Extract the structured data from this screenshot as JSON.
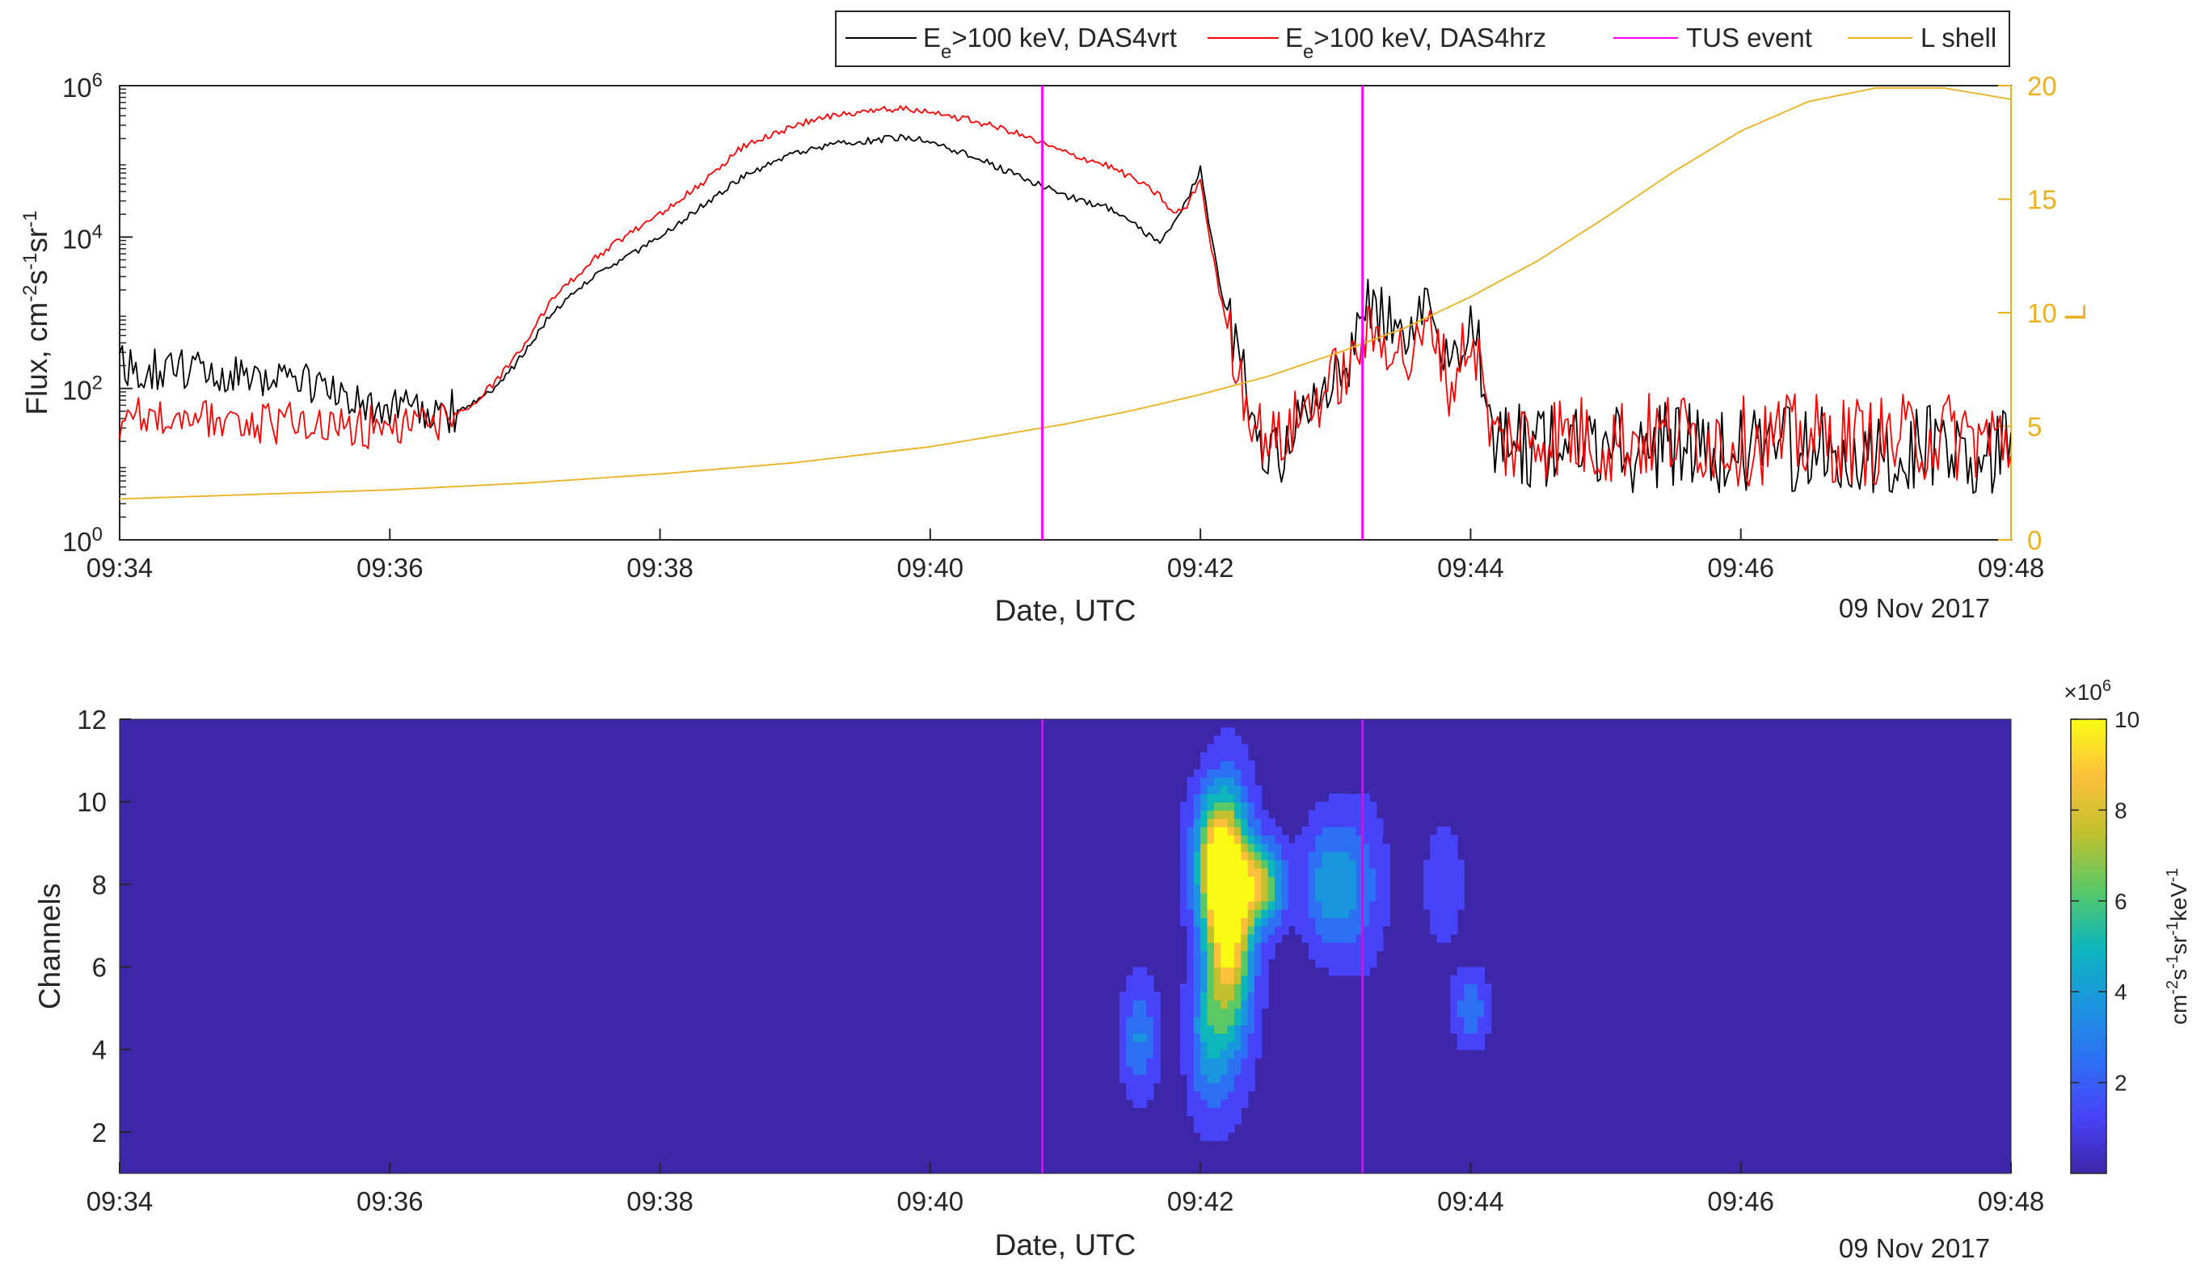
{
  "chart_data": [
    {
      "type": "line",
      "xlabel": "Date, UTC",
      "date_label": "09 Nov 2017",
      "ylabel": "Flux, cm^-2 s^-1 sr^-1",
      "ylabel_parts": {
        "main": "Flux, cm",
        "e1": "-2",
        "s": "s",
        "e2": "-1",
        "sr": "sr",
        "e3": "-1"
      },
      "y2label": "L",
      "x_ticks": [
        "09:34",
        "09:36",
        "09:38",
        "09:40",
        "09:42",
        "09:44",
        "09:46",
        "09:48"
      ],
      "xlim_min": [
        0,
        14
      ],
      "y_scale": "log",
      "ylim": [
        1,
        1000000
      ],
      "y_ticks": [
        {
          "base": "10",
          "exp": "0"
        },
        {
          "base": "10",
          "exp": "2"
        },
        {
          "base": "10",
          "exp": "4"
        },
        {
          "base": "10",
          "exp": "6"
        }
      ],
      "y2lim": [
        0,
        20
      ],
      "y2_ticks": [
        "0",
        "5",
        "10",
        "15",
        "20"
      ],
      "legend_position": "top-right",
      "legend": [
        {
          "pre": "E",
          "sub": "e",
          "post": ">100 keV, DAS4vrt",
          "color": "#000000",
          "type": "line"
        },
        {
          "pre": "E",
          "sub": "e",
          "post": ">100 keV, DAS4hrz",
          "color": "#FF0000",
          "type": "line"
        },
        {
          "pre": "TUS event",
          "sub": "",
          "post": "",
          "color": "#FF00FF",
          "type": "line"
        },
        {
          "pre": "L shell",
          "sub": "",
          "post": "",
          "color": "#EDB120",
          "type": "line"
        }
      ],
      "tus_events_min": [
        6.83,
        9.2
      ],
      "series": [
        {
          "name": "Ee>100 keV, DAS4vrt",
          "color": "#000000",
          "x_min": [
            0,
            0.4,
            0.8,
            1.2,
            1.5,
            1.8,
            2.1,
            2.4,
            2.6,
            2.8,
            3.0,
            3.2,
            3.5,
            3.8,
            4.0,
            4.3,
            4.6,
            5.0,
            5.3,
            5.6,
            5.8,
            6.0,
            6.3,
            6.6,
            6.8,
            7.0,
            7.3,
            7.5,
            7.7,
            7.8,
            7.9,
            8.0,
            8.05,
            8.15,
            8.25,
            8.35,
            8.45,
            8.6,
            8.75,
            8.9,
            9.0,
            9.1,
            9.2,
            9.3,
            9.45,
            9.55,
            9.65,
            9.75,
            9.85,
            9.95,
            10.05,
            10.15,
            10.3,
            10.6,
            11.0,
            11.5,
            12.0,
            12.5,
            13.0,
            13.5,
            14.0
          ],
          "y": [
            200,
            180,
            170,
            140,
            110,
            60,
            50,
            45,
            60,
            110,
            300,
            1000,
            3000,
            6000,
            10000,
            25000,
            60000,
            130000,
            170000,
            190000,
            210000,
            180000,
            120000,
            70000,
            50000,
            35000,
            25000,
            15000,
            8000,
            15000,
            30000,
            80000,
            20000,
            2000,
            500,
            80,
            20,
            15,
            40,
            60,
            150,
            180,
            1300,
            1000,
            1000,
            300,
            1000,
            1200,
            100,
            700,
            500,
            20,
            15,
            18,
            14,
            18,
            15,
            16,
            15,
            17,
            15
          ]
        },
        {
          "name": "Ee>100 keV, DAS4hrz",
          "color": "#FF0000",
          "x_min": [
            0,
            0.4,
            0.8,
            1.2,
            1.5,
            1.8,
            2.1,
            2.4,
            2.6,
            2.8,
            3.0,
            3.2,
            3.5,
            3.8,
            4.0,
            4.3,
            4.6,
            5.0,
            5.3,
            5.6,
            5.8,
            6.0,
            6.3,
            6.6,
            6.8,
            7.0,
            7.3,
            7.5,
            7.7,
            7.8,
            7.9,
            8.0,
            8.05,
            8.15,
            8.25,
            8.35,
            8.45,
            8.6,
            8.75,
            8.9,
            9.0,
            9.1,
            9.2,
            9.3,
            9.45,
            9.55,
            9.65,
            9.75,
            9.85,
            9.95,
            10.05,
            10.15,
            10.3,
            10.6,
            11.0,
            11.5,
            12.0,
            12.5,
            13.0,
            13.5,
            14.0
          ],
          "y": [
            40,
            45,
            40,
            35,
            30,
            30,
            30,
            40,
            60,
            130,
            400,
            1500,
            5000,
            12000,
            20000,
            50000,
            150000,
            300000,
            420000,
            480000,
            500000,
            430000,
            350000,
            250000,
            180000,
            130000,
            90000,
            60000,
            35000,
            20000,
            25000,
            60000,
            15000,
            1500,
            300,
            60,
            25,
            20,
            50,
            80,
            150,
            150,
            500,
            450,
            400,
            200,
            500,
            600,
            80,
            400,
            300,
            25,
            20,
            25,
            20,
            25,
            20,
            22,
            20,
            24,
            20
          ]
        },
        {
          "name": "L shell",
          "color": "#EDB120",
          "axis": "right",
          "x_min": [
            0,
            1,
            2,
            3,
            4,
            5,
            6,
            6.5,
            7,
            7.5,
            8,
            8.5,
            9,
            9.5,
            10,
            10.5,
            11,
            11.5,
            12,
            12.5,
            13,
            13.5,
            14
          ],
          "y": [
            1.8,
            2.0,
            2.2,
            2.5,
            2.9,
            3.4,
            4.1,
            4.6,
            5.1,
            5.7,
            6.4,
            7.2,
            8.2,
            9.3,
            10.7,
            12.3,
            14.2,
            16.2,
            18.0,
            19.3,
            19.9,
            19.9,
            19.4
          ]
        }
      ]
    },
    {
      "type": "heatmap",
      "xlabel": "Date, UTC",
      "date_label": "09 Nov 2017",
      "ylabel": "Channels",
      "x_ticks": [
        "09:34",
        "09:36",
        "09:38",
        "09:40",
        "09:42",
        "09:44",
        "09:46",
        "09:48"
      ],
      "xlim_min": [
        0,
        14
      ],
      "ylim": [
        1,
        12
      ],
      "y_ticks": [
        "2",
        "4",
        "6",
        "8",
        "10",
        "12"
      ],
      "tus_events_min": [
        6.83,
        9.2
      ],
      "colorbar": {
        "label": "cm^-2 s^-1 sr^-1 keV^-1",
        "label_parts": {
          "main": "cm",
          "e1": "-2",
          "s": "s",
          "e2": "-1",
          "sr": "sr",
          "e3": "-1",
          "kev": "keV",
          "e4": "-1"
        },
        "multiplier_base": "×10",
        "multiplier_exp": "6",
        "ticks": [
          "2",
          "4",
          "6",
          "8",
          "10"
        ],
        "range": [
          0,
          10
        ],
        "colormap": "parula"
      },
      "blobs": [
        {
          "t": 8.22,
          "ch": 7.0,
          "st": 0.12,
          "sc": 2.0,
          "v": 9.5
        },
        {
          "t": 8.12,
          "ch": 8.3,
          "st": 0.12,
          "sc": 1.1,
          "v": 6.5
        },
        {
          "t": 8.45,
          "ch": 8.0,
          "st": 0.12,
          "sc": 0.7,
          "v": 7.0
        },
        {
          "t": 8.05,
          "ch": 4.3,
          "st": 0.1,
          "sc": 1.3,
          "v": 3.5
        },
        {
          "t": 7.55,
          "ch": 4.3,
          "st": 0.09,
          "sc": 0.9,
          "v": 3.3
        },
        {
          "t": 8.92,
          "ch": 8.0,
          "st": 0.12,
          "sc": 1.0,
          "v": 3.2
        },
        {
          "t": 9.15,
          "ch": 8.0,
          "st": 0.15,
          "sc": 1.3,
          "v": 2.7
        },
        {
          "t": 10.0,
          "ch": 5.0,
          "st": 0.09,
          "sc": 0.6,
          "v": 2.8
        },
        {
          "t": 9.8,
          "ch": 8.0,
          "st": 0.1,
          "sc": 1.0,
          "v": 1.6
        },
        {
          "t": 8.1,
          "ch": 9.5,
          "st": 0.12,
          "sc": 0.8,
          "v": 2.0
        },
        {
          "t": 6.3,
          "ch": 2.5,
          "st": 0.5,
          "sc": 1.0,
          "v": 0.45
        },
        {
          "t": 4.8,
          "ch": 11.5,
          "st": 1.0,
          "sc": 0.6,
          "v": 0.35
        }
      ]
    }
  ]
}
